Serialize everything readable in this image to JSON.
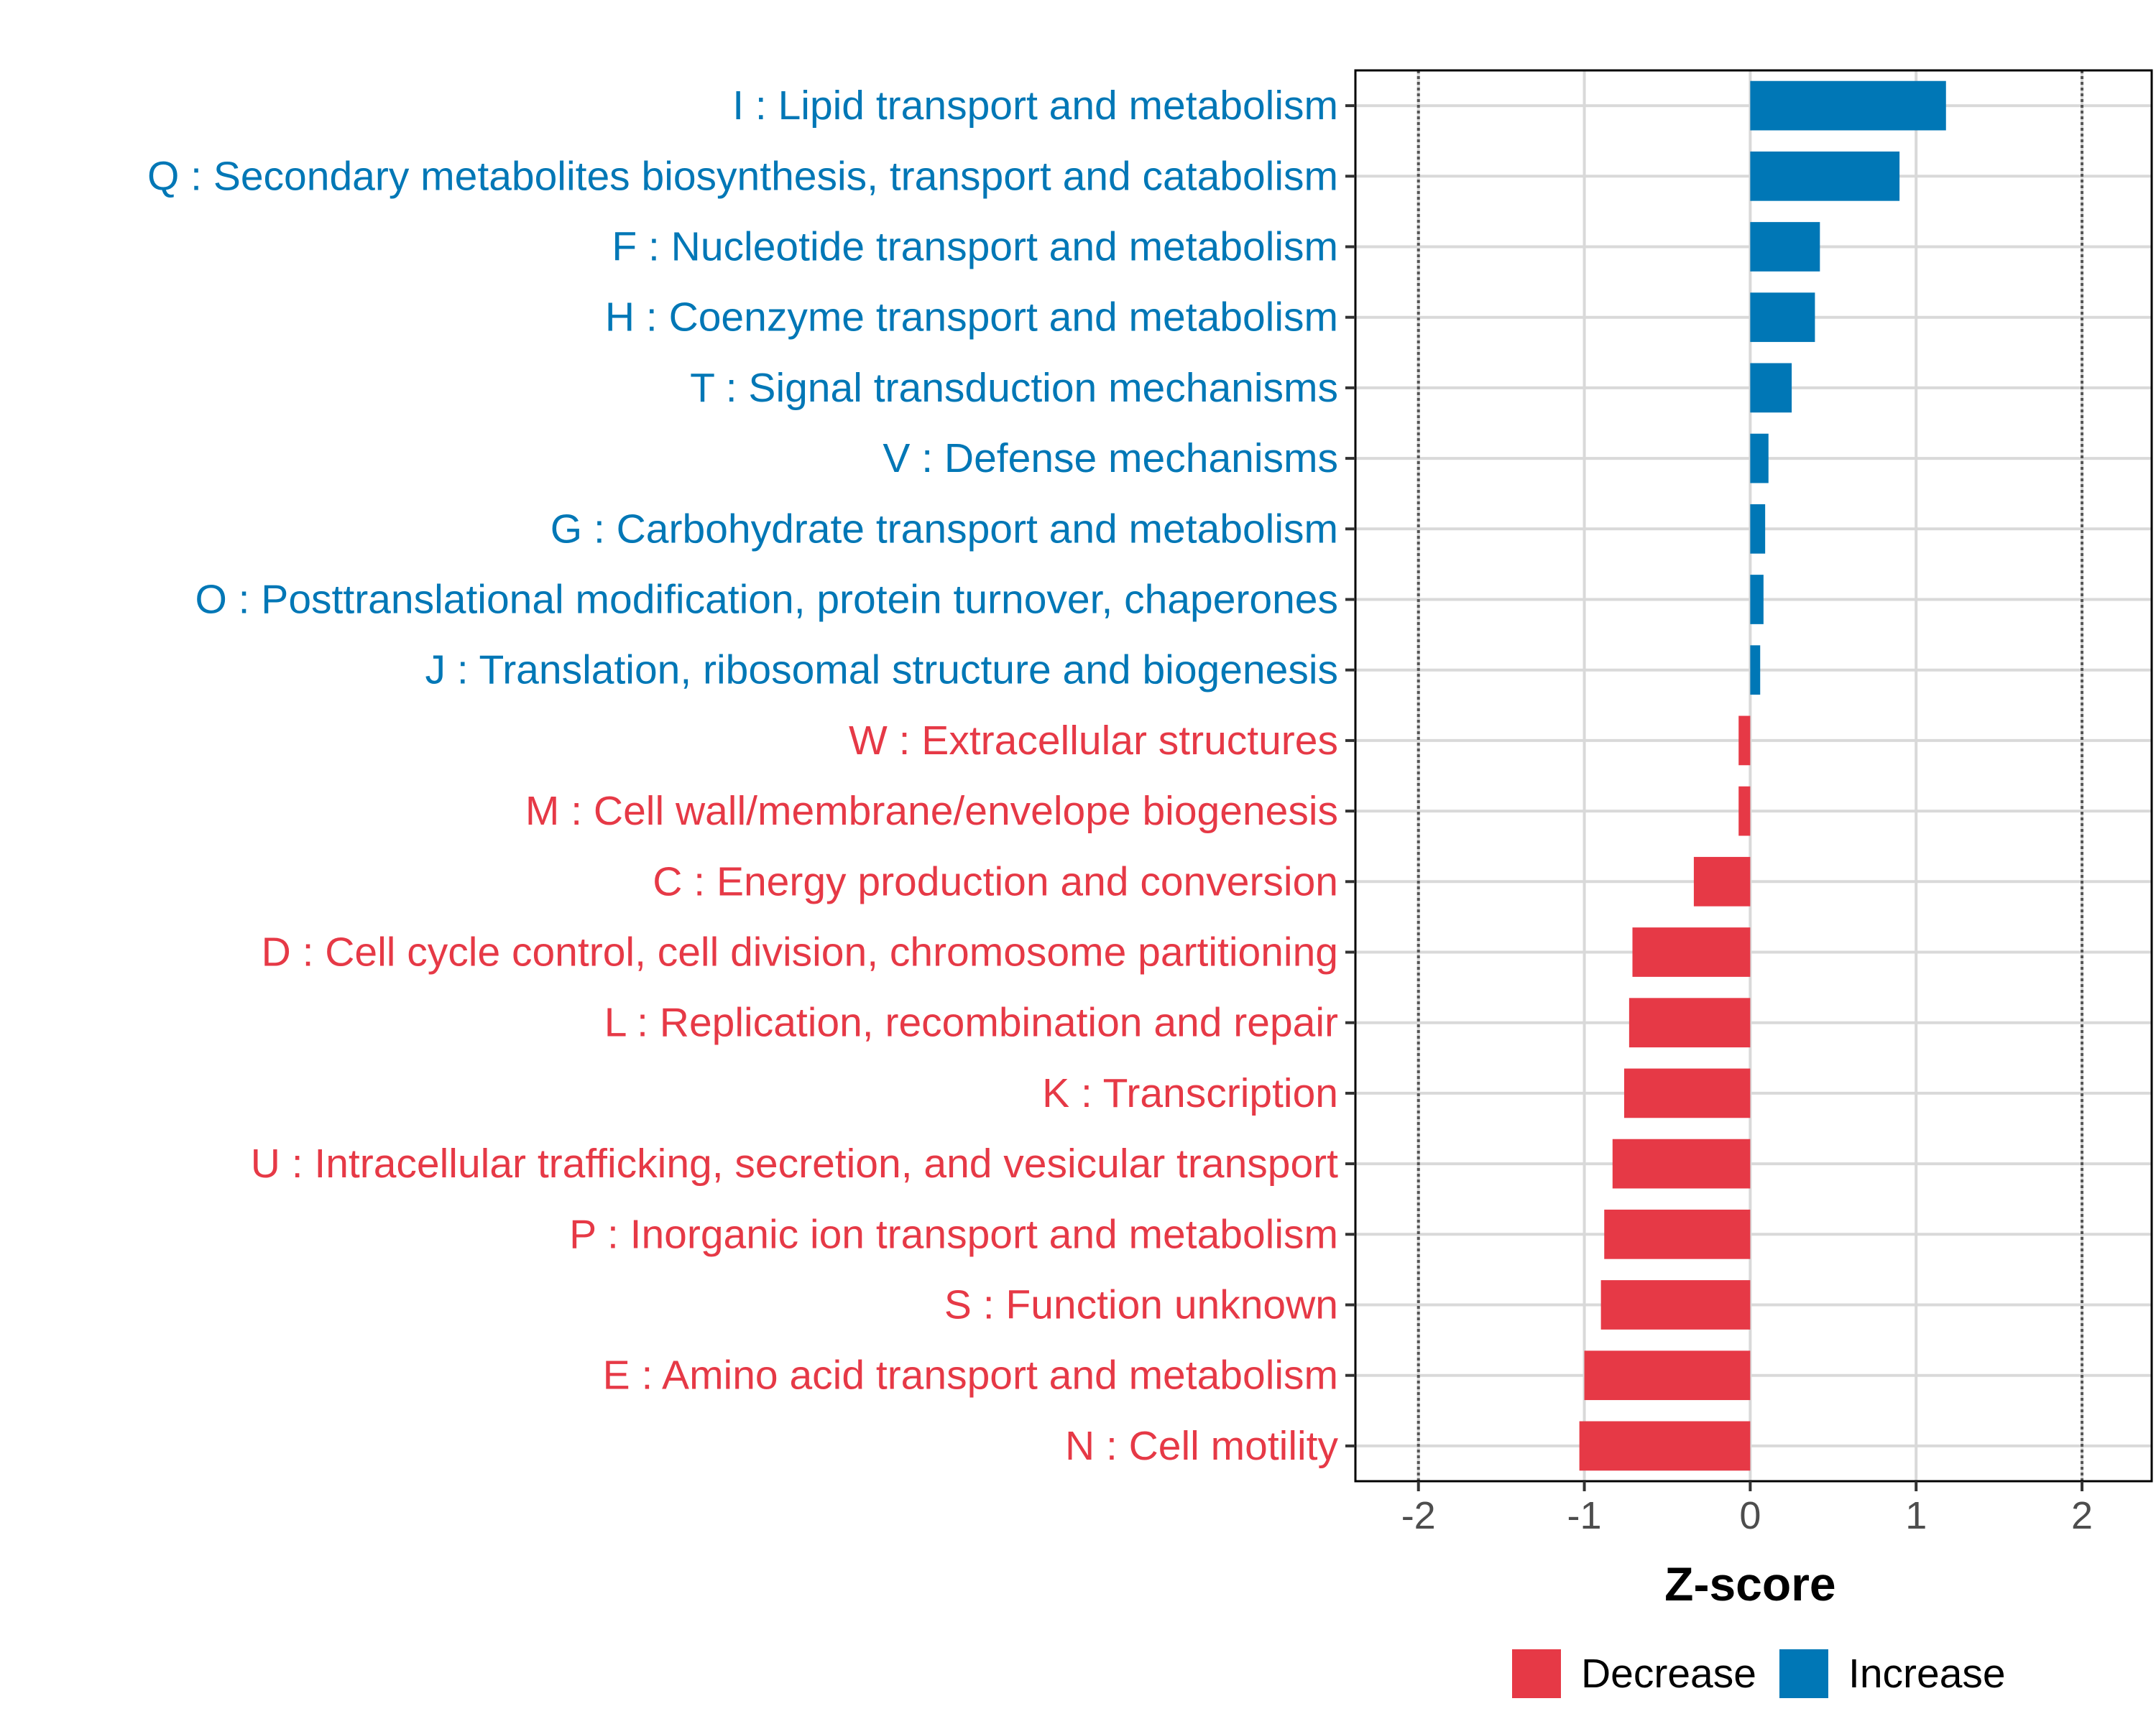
{
  "chart_data": {
    "type": "bar",
    "orientation": "horizontal",
    "title": "",
    "xlabel": "Z-score",
    "ylabel": "",
    "xlim": [
      -2.38,
      2.42
    ],
    "xticks": [
      -2,
      -1,
      0,
      1,
      2
    ],
    "xtick_labels": [
      "-2",
      "-1",
      "0",
      "1",
      "2"
    ],
    "reference_lines": [
      -2,
      2
    ],
    "grid": true,
    "legend": {
      "position": "bottom-right",
      "entries": [
        {
          "key": "decrease",
          "label": "Decrease",
          "color": "#E63946"
        },
        {
          "key": "increase",
          "label": "Increase",
          "color": "#0077B6"
        }
      ]
    },
    "categories": [
      "I : Lipid transport and metabolism",
      "Q : Secondary metabolites biosynthesis, transport and catabolism",
      "F : Nucleotide transport and metabolism",
      "H : Coenzyme transport and metabolism",
      "T : Signal transduction mechanisms",
      "V : Defense mechanisms",
      "G : Carbohydrate transport and metabolism",
      "O : Posttranslational modification, protein turnover, chaperones",
      "J : Translation, ribosomal structure and biogenesis",
      "W : Extracellular structures",
      "M : Cell wall/membrane/envelope biogenesis",
      "C : Energy production and conversion",
      "D : Cell cycle control, cell division, chromosome partitioning",
      "L : Replication, recombination and repair",
      "K : Transcription",
      "U : Intracellular trafficking, secretion, and vesicular transport",
      "P : Inorganic ion transport and metabolism",
      "S : Function unknown",
      "E : Amino acid transport and metabolism",
      "N : Cell motility"
    ],
    "values": [
      1.18,
      0.9,
      0.42,
      0.39,
      0.25,
      0.11,
      0.09,
      0.08,
      0.06,
      -0.07,
      -0.07,
      -0.34,
      -0.71,
      -0.73,
      -0.76,
      -0.83,
      -0.88,
      -0.9,
      -1.0,
      -1.03
    ],
    "groups": [
      "increase",
      "increase",
      "increase",
      "increase",
      "increase",
      "increase",
      "increase",
      "increase",
      "increase",
      "decrease",
      "decrease",
      "decrease",
      "decrease",
      "decrease",
      "decrease",
      "decrease",
      "decrease",
      "decrease",
      "decrease",
      "decrease"
    ]
  }
}
